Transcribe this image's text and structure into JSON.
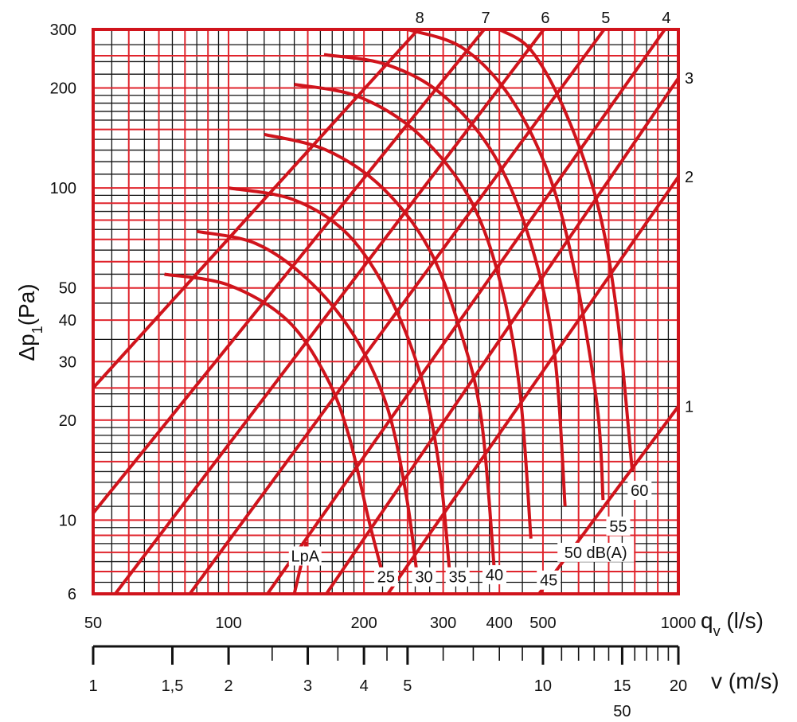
{
  "chart_data": {
    "type": "line",
    "title": "",
    "xlabel": "q",
    "xlabel_sub": "v",
    "xlabel_unit": " (l/s)",
    "ylabel": "Δp",
    "ylabel_sub": "1",
    "ylabel_unit": "(Pa)",
    "xscale": "log",
    "yscale": "log",
    "xlim": [
      50,
      1000
    ],
    "ylim": [
      6,
      300
    ],
    "grid": true,
    "colors": {
      "frame": "#d0141c",
      "grid_major": "#e0242c",
      "grid_minor": "#111111",
      "curves": "#d0141c",
      "text": "#111111"
    },
    "x_ticks": [
      {
        "value": 50,
        "label": "50"
      },
      {
        "value": 100,
        "label": "100"
      },
      {
        "value": 200,
        "label": "200"
      },
      {
        "value": 300,
        "label": "300"
      },
      {
        "value": 400,
        "label": "400"
      },
      {
        "value": 500,
        "label": "500"
      },
      {
        "value": 1000,
        "label": "1000"
      }
    ],
    "y_ticks": [
      {
        "value": 6,
        "label": "6"
      },
      {
        "value": 10,
        "label": "10"
      },
      {
        "value": 20,
        "label": "20"
      },
      {
        "value": 30,
        "label": "30"
      },
      {
        "value": 40,
        "label": "40"
      },
      {
        "value": 50,
        "label": "50"
      },
      {
        "value": 100,
        "label": "100"
      },
      {
        "value": 200,
        "label": "200"
      },
      {
        "value": 300,
        "label": "300"
      }
    ],
    "x_grid_red": [
      50,
      60,
      70,
      80,
      90,
      100,
      150,
      200,
      250,
      300,
      400,
      500,
      600,
      700,
      800,
      900,
      1000
    ],
    "x_grid_black": [
      55,
      65,
      75,
      85,
      95,
      110,
      120,
      130,
      140,
      160,
      170,
      180,
      190,
      220,
      240,
      260,
      280,
      320,
      340,
      360,
      380,
      450,
      550,
      650,
      750,
      850,
      950
    ],
    "y_grid_red": [
      7,
      8,
      9,
      10,
      15,
      20,
      25,
      30,
      40,
      50,
      60,
      70,
      80,
      90,
      100,
      150,
      200,
      250,
      300
    ],
    "y_grid_black": [
      6.5,
      7.5,
      8.5,
      9.5,
      11,
      12,
      13,
      14,
      16,
      17,
      18,
      19,
      22,
      24,
      27,
      35,
      45,
      55,
      65,
      75,
      85,
      95,
      110,
      120,
      130,
      140,
      160,
      170,
      180,
      190,
      220,
      240,
      270
    ],
    "velocity_scale": {
      "label": "v (m/s)",
      "q_per_v": 50,
      "ticks": [
        {
          "v": 1,
          "label": "1"
        },
        {
          "v": 1.5,
          "label": "1,5"
        },
        {
          "v": 2,
          "label": "2"
        },
        {
          "v": 3,
          "label": "3"
        },
        {
          "v": 4,
          "label": "4"
        },
        {
          "v": 5,
          "label": "5"
        },
        {
          "v": 10,
          "label": "10"
        },
        {
          "v": 15,
          "label": "15"
        },
        {
          "v": 20,
          "label": "20"
        }
      ],
      "minor_ticks": [
        2.5,
        3.5,
        4.5,
        6,
        7,
        8,
        9,
        11,
        12,
        13,
        14,
        16,
        17,
        18,
        19
      ],
      "extra_label": "50"
    },
    "series": [
      {
        "name": "1",
        "points": [
          [
            490,
            6
          ],
          [
            1000,
            22
          ]
        ]
      },
      {
        "name": "2",
        "points": [
          [
            226,
            6
          ],
          [
            1000,
            108
          ]
        ]
      },
      {
        "name": "3",
        "points": [
          [
            165,
            6
          ],
          [
            1000,
            214
          ]
        ]
      },
      {
        "name": "4",
        "points": [
          [
            122,
            6
          ],
          [
            933,
            300
          ]
        ]
      },
      {
        "name": "5",
        "points": [
          [
            82,
            6
          ],
          [
            684,
            300
          ]
        ]
      },
      {
        "name": "6",
        "points": [
          [
            56,
            6
          ],
          [
            502,
            300
          ]
        ]
      },
      {
        "name": "7",
        "points": [
          [
            50,
            10.5
          ],
          [
            370,
            300
          ]
        ]
      },
      {
        "name": "8",
        "points": [
          [
            50,
            25
          ],
          [
            264,
            300
          ]
        ]
      }
    ],
    "noise_curves": [
      {
        "label": "25",
        "points": [
          [
            72,
            55
          ],
          [
            100,
            51
          ],
          [
            135,
            40
          ],
          [
            165,
            27
          ],
          [
            185,
            18
          ],
          [
            205,
            10
          ],
          [
            220,
            6.9
          ]
        ]
      },
      {
        "label": "30",
        "points": [
          [
            85,
            74
          ],
          [
            115,
            68
          ],
          [
            150,
            53
          ],
          [
            190,
            36
          ],
          [
            225,
            22
          ],
          [
            248,
            12
          ],
          [
            262,
            7.0
          ]
        ]
      },
      {
        "label": "35",
        "points": [
          [
            100,
            100
          ],
          [
            140,
            92
          ],
          [
            185,
            72
          ],
          [
            230,
            46
          ],
          [
            270,
            26
          ],
          [
            295,
            14
          ],
          [
            310,
            7.0
          ]
        ]
      },
      {
        "label": "40",
        "points": [
          [
            120,
            145
          ],
          [
            165,
            130
          ],
          [
            220,
            100
          ],
          [
            280,
            65
          ],
          [
            330,
            36
          ],
          [
            365,
            20
          ],
          [
            390,
            7.0
          ]
        ]
      },
      {
        "label": "45",
        "points": [
          [
            140,
            205
          ],
          [
            195,
            188
          ],
          [
            265,
            145
          ],
          [
            345,
            92
          ],
          [
            405,
            50
          ],
          [
            445,
            24
          ],
          [
            470,
            8.8
          ]
        ]
      },
      {
        "label": "50",
        "points": [
          [
            163,
            252
          ],
          [
            225,
            235
          ],
          [
            300,
            190
          ],
          [
            390,
            125
          ],
          [
            470,
            68
          ],
          [
            530,
            32
          ],
          [
            560,
            11
          ]
        ]
      },
      {
        "label": "55",
        "points": [
          [
            250,
            300
          ],
          [
            330,
            265
          ],
          [
            420,
            190
          ],
          [
            515,
            110
          ],
          [
            590,
            55
          ],
          [
            660,
            22
          ],
          [
            680,
            11.5
          ]
        ]
      },
      {
        "label": "60",
        "points": [
          [
            400,
            300
          ],
          [
            470,
            260
          ],
          [
            560,
            170
          ],
          [
            660,
            90
          ],
          [
            730,
            42
          ],
          [
            790,
            14
          ]
        ]
      }
    ],
    "noise_labels": [
      {
        "text": "25",
        "q": 224,
        "p": 6.75
      },
      {
        "text": "30",
        "q": 272,
        "p": 6.75
      },
      {
        "text": "35",
        "q": 323,
        "p": 6.75
      },
      {
        "text": "40",
        "q": 390,
        "p": 6.85
      },
      {
        "text": "45",
        "q": 515,
        "p": 6.6
      },
      {
        "text": "50 dB(A)",
        "q": 655,
        "p": 8.0
      },
      {
        "text": "55",
        "q": 735,
        "p": 9.6
      },
      {
        "text": "60",
        "q": 820,
        "p": 12.3
      },
      {
        "text": "LpA",
        "q": 148,
        "p": 7.8
      }
    ],
    "lpa_pointer": [
      [
        140,
        6.0
      ],
      [
        149,
        8.6
      ]
    ]
  }
}
